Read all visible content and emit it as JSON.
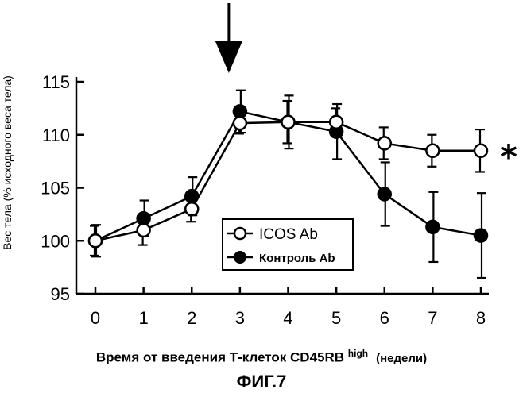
{
  "chart_data": {
    "type": "line",
    "title": "",
    "ylabel": "Вес тела (% исходного веса тела)",
    "xlabel": {
      "main": "Время от введения Т-клеток CD45RB",
      "superscript": "high",
      "units": "(недели)"
    },
    "figure_caption": "ФИГ.7",
    "x": [
      0,
      1,
      2,
      3,
      4,
      5,
      6,
      7,
      8
    ],
    "x_tick_labels": [
      "0",
      "1",
      "2",
      "3",
      "4",
      "5",
      "6",
      "7",
      "8"
    ],
    "y_tick_labels": [
      "95",
      "100",
      "105",
      "110",
      "115"
    ],
    "y_ticks": [
      95,
      100,
      105,
      110,
      115
    ],
    "ylim": [
      95,
      115
    ],
    "xlim": [
      0,
      8
    ],
    "legend_position": "center",
    "significance_marker": "*",
    "treatment_arrow_x": 3,
    "series": [
      {
        "name": "ICOS Ab",
        "marker": "open-circle",
        "values": [
          100.0,
          101.0,
          103.0,
          111.1,
          111.2,
          111.2,
          109.2,
          108.5,
          108.5
        ],
        "errors": [
          1.4,
          1.4,
          1.2,
          1.0,
          2.0,
          1.3,
          1.5,
          1.5,
          2.0
        ]
      },
      {
        "name": "Контроль Ab",
        "marker": "filled-circle",
        "values": [
          100.0,
          102.1,
          104.2,
          112.2,
          111.2,
          110.3,
          104.4,
          101.3,
          100.5
        ],
        "errors": [
          1.5,
          1.7,
          1.8,
          2.0,
          2.5,
          2.6,
          3.0,
          3.3,
          4.0
        ]
      }
    ]
  }
}
